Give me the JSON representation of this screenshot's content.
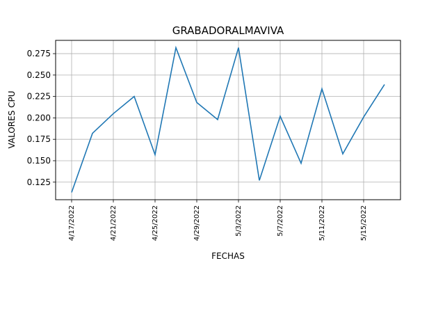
{
  "chart_data": {
    "type": "line",
    "title": "GRABADORALMAVIVA",
    "xlabel": "FECHAS",
    "ylabel": "VALORES CPU",
    "grid": true,
    "legend": "none",
    "line_color": "#1f77b4",
    "x": [
      "4/17/2022",
      "4/19/2022",
      "4/21/2022",
      "4/23/2022",
      "4/25/2022",
      "4/27/2022",
      "4/29/2022",
      "5/1/2022",
      "5/3/2022",
      "5/5/2022",
      "5/7/2022",
      "5/9/2022",
      "5/11/2022",
      "5/13/2022",
      "5/15/2022",
      "5/17/2022"
    ],
    "values": [
      0.113,
      0.182,
      0.205,
      0.225,
      0.157,
      0.282,
      0.218,
      0.198,
      0.282,
      0.127,
      0.202,
      0.147,
      0.234,
      0.158,
      0.201,
      0.239
    ],
    "xticks": [
      "4/17/2022",
      "4/21/2022",
      "4/25/2022",
      "4/29/2022",
      "5/3/2022",
      "5/7/2022",
      "5/11/2022",
      "5/15/2022"
    ],
    "yticks": [
      "0.125",
      "0.150",
      "0.175",
      "0.200",
      "0.225",
      "0.250",
      "0.275"
    ],
    "ylim": [
      0.1045,
      0.2905
    ]
  }
}
